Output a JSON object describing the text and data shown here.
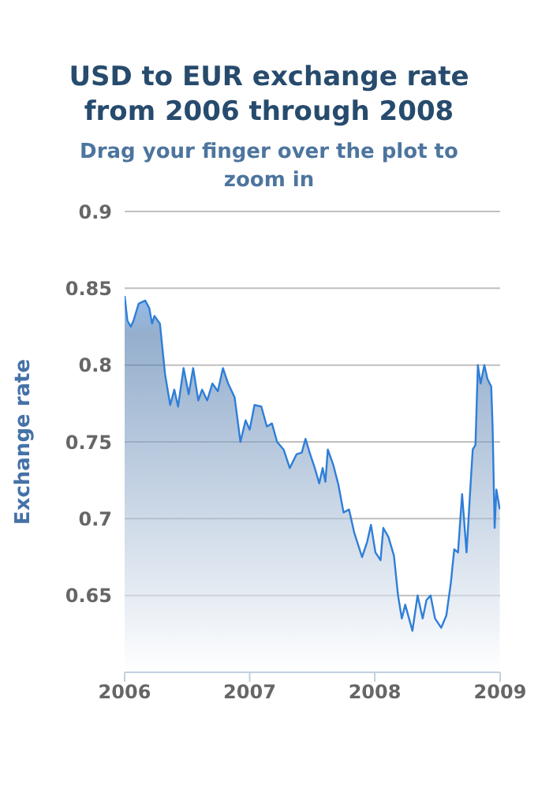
{
  "chart_data": {
    "type": "area",
    "title": "USD to EUR exchange rate from 2006 through 2008",
    "subtitle": "Drag your finger over the plot to zoom in",
    "ylabel": "Exchange rate",
    "x": [
      "2006-01-01",
      "2006-01-09",
      "2006-01-19",
      "2006-01-27",
      "2006-02-11",
      "2006-03-02",
      "2006-03-14",
      "2006-03-22",
      "2006-03-29",
      "2006-04-14",
      "2006-04-29",
      "2006-05-14",
      "2006-05-26",
      "2006-06-06",
      "2006-06-22",
      "2006-07-07",
      "2006-07-20",
      "2006-08-04",
      "2006-08-15",
      "2006-08-30",
      "2006-09-14",
      "2006-09-30",
      "2006-10-15",
      "2006-10-30",
      "2006-11-18",
      "2006-12-05",
      "2006-12-20",
      "2007-01-01",
      "2007-01-15",
      "2007-02-04",
      "2007-02-20",
      "2007-03-07",
      "2007-03-22",
      "2007-04-10",
      "2007-04-28",
      "2007-05-18",
      "2007-06-02",
      "2007-06-13",
      "2007-06-25",
      "2007-07-10",
      "2007-07-23",
      "2007-08-02",
      "2007-08-10",
      "2007-08-17",
      "2007-09-02",
      "2007-09-17",
      "2007-10-02",
      "2007-10-18",
      "2007-11-02",
      "2007-11-25",
      "2007-12-10",
      "2007-12-21",
      "2008-01-03",
      "2008-01-18",
      "2008-01-26",
      "2008-02-10",
      "2008-02-26",
      "2008-03-09",
      "2008-03-20",
      "2008-03-30",
      "2008-04-20",
      "2008-05-05",
      "2008-05-20",
      "2008-05-31",
      "2008-06-12",
      "2008-06-25",
      "2008-07-13",
      "2008-07-28",
      "2008-08-10",
      "2008-08-20",
      "2008-08-31",
      "2008-09-12",
      "2008-09-25",
      "2008-10-05",
      "2008-10-13",
      "2008-10-21",
      "2008-10-28",
      "2008-11-05",
      "2008-11-16",
      "2008-11-25",
      "2008-12-06",
      "2008-12-10",
      "2008-12-16",
      "2008-12-21",
      "2008-12-31"
    ],
    "values": [
      0.845,
      0.829,
      0.825,
      0.829,
      0.84,
      0.842,
      0.837,
      0.827,
      0.832,
      0.827,
      0.794,
      0.774,
      0.784,
      0.773,
      0.798,
      0.781,
      0.798,
      0.777,
      0.784,
      0.777,
      0.788,
      0.783,
      0.798,
      0.788,
      0.779,
      0.75,
      0.764,
      0.758,
      0.774,
      0.773,
      0.76,
      0.762,
      0.75,
      0.745,
      0.733,
      0.742,
      0.743,
      0.752,
      0.743,
      0.733,
      0.723,
      0.733,
      0.724,
      0.745,
      0.735,
      0.722,
      0.704,
      0.706,
      0.691,
      0.675,
      0.685,
      0.696,
      0.678,
      0.673,
      0.694,
      0.688,
      0.676,
      0.65,
      0.635,
      0.644,
      0.627,
      0.65,
      0.635,
      0.647,
      0.65,
      0.635,
      0.629,
      0.637,
      0.658,
      0.68,
      0.678,
      0.716,
      0.678,
      0.716,
      0.745,
      0.748,
      0.8,
      0.788,
      0.8,
      0.791,
      0.786,
      0.76,
      0.694,
      0.719,
      0.706
    ],
    "color": "#2f7ed8",
    "xlim": [
      "2006-01-01",
      "2009-01-01"
    ],
    "xticks": [
      {
        "value": "2006-01-01",
        "label": "2006"
      },
      {
        "value": "2007-01-01",
        "label": "2007"
      },
      {
        "value": "2008-01-01",
        "label": "2008"
      },
      {
        "value": "2009-01-01",
        "label": "2009"
      }
    ],
    "ylim": [
      0.6,
      0.9
    ],
    "yticks": [
      {
        "value": 0.6,
        "label": null
      },
      0.65,
      0.7,
      0.75,
      0.8,
      0.85,
      0.9
    ],
    "grid": "y"
  }
}
